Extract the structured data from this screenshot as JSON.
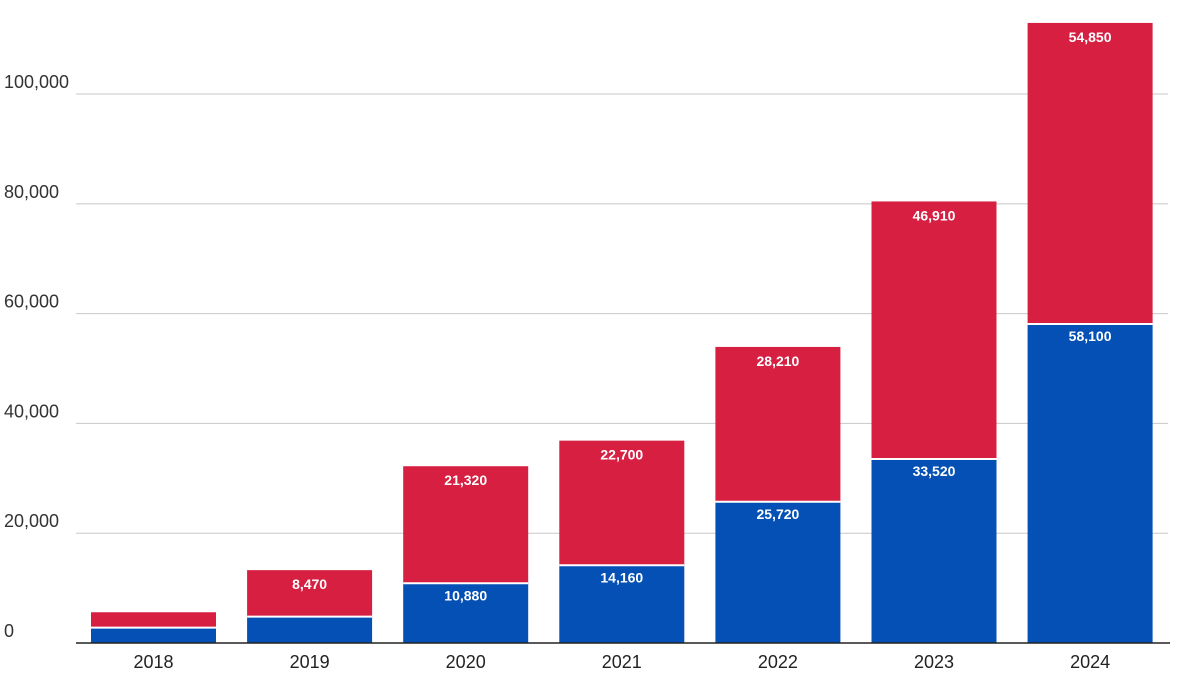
{
  "colors": {
    "lower": "#0450B4",
    "upper": "#D61F41",
    "grid": "#c8c8c8",
    "axis": "#222222"
  },
  "chart_data": {
    "type": "bar",
    "stacked": true,
    "title": "",
    "xlabel": "",
    "ylabel": "",
    "categories": [
      "2018",
      "2019",
      "2020",
      "2021",
      "2022",
      "2023",
      "2024"
    ],
    "series": [
      {
        "name": "lower",
        "values": [
          2800,
          4800,
          10880,
          14160,
          25720,
          33520,
          58100
        ],
        "labels": [
          "",
          "",
          "10,880",
          "14,160",
          "25,720",
          "33,520",
          "58,100"
        ]
      },
      {
        "name": "upper",
        "values": [
          2800,
          8470,
          21320,
          22700,
          28210,
          46910,
          54850
        ],
        "labels": [
          "",
          "8,470",
          "21,320",
          "22,700",
          "28,210",
          "46,910",
          "54,850"
        ]
      }
    ],
    "ylim": [
      0,
      113000
    ],
    "yticks": [
      0,
      20000,
      40000,
      60000,
      80000,
      100000
    ],
    "ytick_labels": [
      "0",
      "20,000",
      "40,000",
      "60,000",
      "80,000",
      "100,000"
    ],
    "grid": true,
    "legend": "none"
  }
}
